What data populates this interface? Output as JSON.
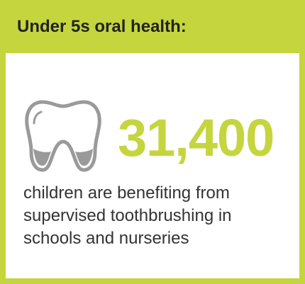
{
  "header": {
    "title": "Under 5s oral health:"
  },
  "stat": {
    "value": "31,400",
    "description_lines": [
      "children are benefiting from",
      "supervised toothbrushing in",
      "schools and nurseries"
    ]
  },
  "icons": {
    "tooth": "tooth-icon"
  },
  "colors": {
    "accent": "#c5d53e",
    "text": "#333333",
    "icon": "#9a9a9a"
  }
}
